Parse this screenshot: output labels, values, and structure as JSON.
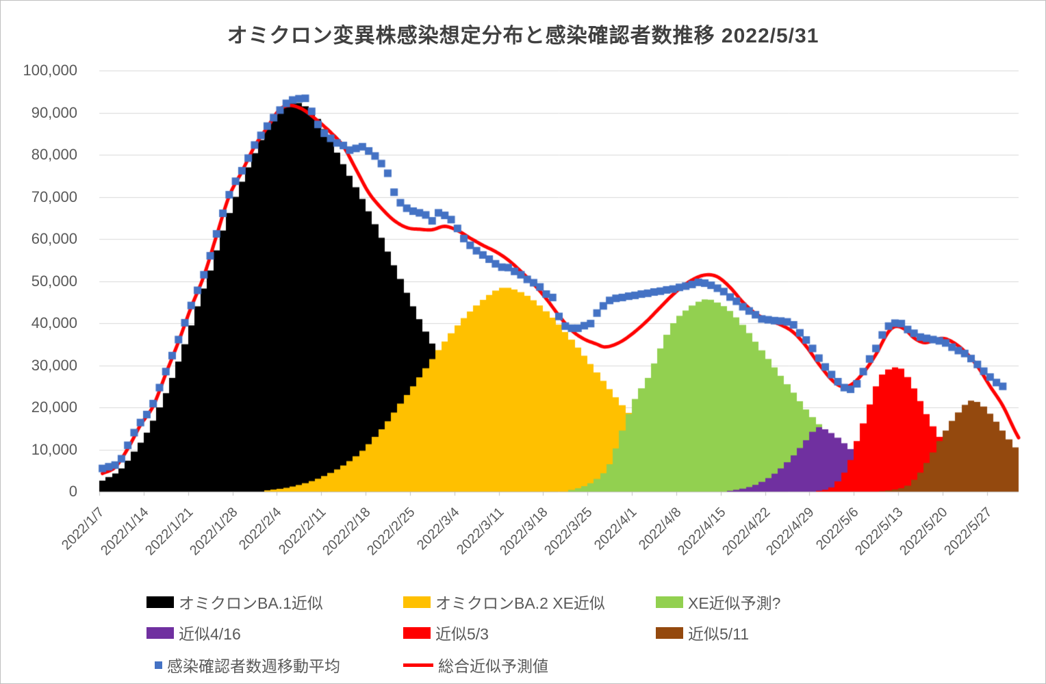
{
  "chart_data": {
    "type": "combo",
    "title": "オミクロン変異株感染想定分布と感染確認者数推移  2022/5/31",
    "start_date": "2022/1/7",
    "end_date": "2022/5/31",
    "x_unit": "day (daily bars from 2022/1/7)",
    "grid": "horizontal",
    "legend_position": "bottom",
    "y_axis": {
      "min": 0,
      "max": 100000,
      "step": 10000,
      "tick_labels": [
        "100,000",
        "90,000",
        "80,000",
        "70,000",
        "60,000",
        "50,000",
        "40,000",
        "30,000",
        "20,000",
        "10,000",
        "0"
      ]
    },
    "x_axis": {
      "tick_labels": [
        "2022/1/7",
        "2022/1/14",
        "2022/1/21",
        "2022/1/28",
        "2022/2/4",
        "2022/2/11",
        "2022/2/18",
        "2022/2/25",
        "2022/3/4",
        "2022/3/11",
        "2022/3/18",
        "2022/3/25",
        "2022/4/1",
        "2022/4/8",
        "2022/4/15",
        "2022/4/22",
        "2022/4/29",
        "2022/5/6",
        "2022/5/13",
        "2022/5/20",
        "2022/5/27"
      ]
    },
    "bar_series": [
      {
        "name": "オミクロンBA.1近似",
        "color": "#000000",
        "points": [
          [
            0,
            2600
          ],
          [
            3,
            5500
          ],
          [
            5,
            9500
          ],
          [
            7,
            14000
          ],
          [
            9,
            20000
          ],
          [
            11,
            27000
          ],
          [
            13,
            35000
          ],
          [
            15,
            44000
          ],
          [
            17,
            52500
          ],
          [
            19,
            62000
          ],
          [
            21,
            70000
          ],
          [
            23,
            77000
          ],
          [
            25,
            83500
          ],
          [
            27,
            88500
          ],
          [
            29,
            91500
          ],
          [
            30.5,
            92400
          ],
          [
            32,
            91500
          ],
          [
            34,
            88500
          ],
          [
            37,
            80500
          ],
          [
            39,
            75000
          ],
          [
            41,
            69500
          ],
          [
            43,
            63500
          ],
          [
            45,
            57000
          ],
          [
            47,
            50500
          ],
          [
            49,
            44000
          ],
          [
            51,
            38000
          ],
          [
            53,
            32400
          ],
          [
            55,
            27000
          ],
          [
            57,
            22200
          ],
          [
            59,
            18000
          ],
          [
            61,
            14400
          ],
          [
            63,
            11300
          ],
          [
            65,
            8800
          ],
          [
            67,
            6700
          ],
          [
            69,
            5000
          ],
          [
            71,
            3800
          ],
          [
            74,
            2300
          ],
          [
            77,
            1300
          ],
          [
            80,
            700
          ],
          [
            84,
            300
          ],
          [
            88,
            100
          ],
          [
            92,
            0
          ]
        ]
      },
      {
        "name": "オミクロンBA.2 XE近似",
        "color": "#FFC000",
        "points": [
          [
            26,
            300
          ],
          [
            29,
            900
          ],
          [
            32,
            2000
          ],
          [
            35,
            3700
          ],
          [
            38,
            6200
          ],
          [
            41,
            9700
          ],
          [
            43,
            13000
          ],
          [
            45,
            16700
          ],
          [
            47,
            20900
          ],
          [
            49,
            25000
          ],
          [
            51,
            29300
          ],
          [
            53,
            33600
          ],
          [
            55,
            37600
          ],
          [
            57,
            41200
          ],
          [
            59,
            44200
          ],
          [
            61,
            46700
          ],
          [
            63,
            48400
          ],
          [
            65,
            48000
          ],
          [
            67,
            46500
          ],
          [
            69,
            44200
          ],
          [
            71,
            41300
          ],
          [
            73,
            37900
          ],
          [
            75,
            34200
          ],
          [
            77,
            30300
          ],
          [
            79,
            26300
          ],
          [
            81,
            22400
          ],
          [
            83,
            18700
          ],
          [
            85,
            15300
          ],
          [
            87,
            12300
          ],
          [
            89,
            9700
          ],
          [
            91,
            7500
          ],
          [
            93,
            5700
          ],
          [
            95,
            4200
          ],
          [
            97,
            3000
          ],
          [
            99,
            2100
          ],
          [
            102,
            1200
          ],
          [
            105,
            600
          ],
          [
            108,
            250
          ],
          [
            111,
            0
          ]
        ]
      },
      {
        "name": "XE近似予測?",
        "color": "#92D050",
        "points": [
          [
            74,
            400
          ],
          [
            76,
            1300
          ],
          [
            78,
            3000
          ],
          [
            80,
            6500
          ],
          [
            82,
            14500
          ],
          [
            84,
            22000
          ],
          [
            86,
            27000
          ],
          [
            88,
            34000
          ],
          [
            90,
            40000
          ],
          [
            92,
            43000
          ],
          [
            94,
            45100
          ],
          [
            95.5,
            45700
          ],
          [
            97,
            44900
          ],
          [
            99,
            42900
          ],
          [
            101,
            39600
          ],
          [
            103,
            35600
          ],
          [
            105,
            31500
          ],
          [
            107,
            27500
          ],
          [
            109,
            23500
          ],
          [
            111,
            19500
          ],
          [
            113,
            16000
          ],
          [
            115,
            13000
          ],
          [
            117,
            10400
          ],
          [
            119,
            8300
          ],
          [
            121,
            6600
          ],
          [
            123,
            5200
          ],
          [
            125,
            4000
          ],
          [
            127,
            3000
          ],
          [
            129,
            2200
          ],
          [
            131,
            1600
          ],
          [
            134,
            900
          ],
          [
            137,
            400
          ],
          [
            140,
            100
          ],
          [
            142,
            0
          ]
        ]
      },
      {
        "name": "近似4/16",
        "color": "#7030A0",
        "points": [
          [
            99,
            200
          ],
          [
            101,
            700
          ],
          [
            103,
            1600
          ],
          [
            105,
            3200
          ],
          [
            107,
            5500
          ],
          [
            109,
            8600
          ],
          [
            111,
            12200
          ],
          [
            112,
            14200
          ],
          [
            113,
            15300
          ],
          [
            114,
            14800
          ],
          [
            116,
            12800
          ],
          [
            118,
            10100
          ],
          [
            120,
            7500
          ],
          [
            122,
            5300
          ],
          [
            124,
            3600
          ],
          [
            126,
            2300
          ],
          [
            128,
            1400
          ],
          [
            130,
            800
          ],
          [
            132,
            400
          ],
          [
            134,
            150
          ],
          [
            136,
            0
          ]
        ]
      },
      {
        "name": "近似5/3",
        "color": "#FF0000",
        "points": [
          [
            113,
            200
          ],
          [
            115,
            1000
          ],
          [
            117,
            4500
          ],
          [
            118,
            7500
          ],
          [
            119,
            12000
          ],
          [
            120,
            16200
          ],
          [
            121,
            20700
          ],
          [
            122,
            25000
          ],
          [
            123,
            27800
          ],
          [
            124,
            29000
          ],
          [
            125,
            29500
          ],
          [
            126,
            29200
          ],
          [
            127,
            27200
          ],
          [
            128,
            24500
          ],
          [
            129,
            21500
          ],
          [
            130,
            18400
          ],
          [
            131,
            15500
          ],
          [
            132,
            13000
          ],
          [
            133,
            10800
          ],
          [
            134,
            9000
          ],
          [
            135,
            7400
          ],
          [
            136,
            6000
          ],
          [
            137,
            4900
          ],
          [
            138,
            4000
          ],
          [
            139,
            3200
          ],
          [
            140,
            2600
          ],
          [
            141,
            2100
          ],
          [
            142,
            1700
          ],
          [
            143,
            1400
          ],
          [
            144,
            1100
          ]
        ]
      },
      {
        "name": "近似5/11",
        "color": "#94490E",
        "points": [
          [
            123,
            100
          ],
          [
            125,
            500
          ],
          [
            127,
            1400
          ],
          [
            128,
            2800
          ],
          [
            129,
            4500
          ],
          [
            130,
            6800
          ],
          [
            131,
            9300
          ],
          [
            132,
            12000
          ],
          [
            133,
            14500
          ],
          [
            134,
            16800
          ],
          [
            135,
            18800
          ],
          [
            136,
            20600
          ],
          [
            137,
            21600
          ],
          [
            138,
            21300
          ],
          [
            139,
            20200
          ],
          [
            140,
            18500
          ],
          [
            141,
            16600
          ],
          [
            142,
            14500
          ],
          [
            143,
            12400
          ],
          [
            144,
            10500
          ]
        ]
      }
    ],
    "scatter_series": {
      "name": "感染確認者数週移動平均",
      "color": "#4472C4",
      "marker": "square",
      "daily_values": [
        5500,
        5900,
        6300,
        7800,
        11000,
        14000,
        16400,
        18300,
        20900,
        24700,
        28500,
        32300,
        36100,
        40100,
        44200,
        47800,
        51500,
        56000,
        61200,
        66100,
        70500,
        73700,
        76200,
        79200,
        82300,
        84600,
        86800,
        88800,
        90600,
        92200,
        93000,
        93300,
        93400,
        90300,
        87200,
        85100,
        83900,
        82800,
        82200,
        81100,
        81500,
        81900,
        80900,
        79700,
        77900,
        75600,
        71100,
        68600,
        67300,
        66600,
        66200,
        65700,
        64300,
        66200,
        65600,
        64600,
        62500,
        60100,
        58500,
        57200,
        56200,
        55200,
        54100,
        53300,
        53200,
        52300,
        51500,
        50400,
        49600,
        48600,
        46900,
        46100,
        41600,
        39300,
        38800,
        38800,
        39400,
        39900,
        42400,
        44100,
        45400,
        45900,
        46100,
        46400,
        46600,
        46900,
        47100,
        47400,
        47600,
        47900,
        48100,
        48500,
        48800,
        49200,
        49700,
        49500,
        49000,
        48300,
        47500,
        46200,
        45200,
        43900,
        42900,
        42000,
        41000,
        40800,
        40600,
        40500,
        40300,
        39600,
        37700,
        36000,
        34000,
        31700,
        29600,
        27800,
        26100,
        24700,
        24300,
        25600,
        28500,
        31500,
        34000,
        37200,
        39300,
        40000,
        39900,
        38500,
        37600,
        36700,
        36400,
        36100,
        35800,
        35300,
        34300,
        33500,
        32800,
        31600,
        30200,
        28600,
        27200,
        25900,
        25000
      ]
    },
    "line_series": {
      "name": "総合近似予測値",
      "color": "#FF0000",
      "points": [
        [
          0,
          4300
        ],
        [
          2,
          5800
        ],
        [
          4,
          10200
        ],
        [
          6,
          15800
        ],
        [
          8,
          20300
        ],
        [
          10,
          28000
        ],
        [
          12,
          35600
        ],
        [
          14,
          43800
        ],
        [
          16,
          51200
        ],
        [
          18,
          60800
        ],
        [
          20,
          70200
        ],
        [
          22,
          76000
        ],
        [
          24,
          82000
        ],
        [
          26,
          86500
        ],
        [
          28,
          90800
        ],
        [
          29.5,
          91700
        ],
        [
          31,
          91200
        ],
        [
          32,
          90400
        ],
        [
          34,
          88000
        ],
        [
          36,
          85300
        ],
        [
          38,
          82000
        ],
        [
          40,
          76500
        ],
        [
          42,
          71000
        ],
        [
          44,
          67300
        ],
        [
          46,
          64400
        ],
        [
          48,
          62700
        ],
        [
          50,
          62300
        ],
        [
          52,
          62200
        ],
        [
          54,
          63000
        ],
        [
          56,
          62000
        ],
        [
          58,
          60200
        ],
        [
          60,
          58500
        ],
        [
          62,
          57000
        ],
        [
          64,
          55000
        ],
        [
          66,
          52300
        ],
        [
          68,
          49300
        ],
        [
          70,
          45800
        ],
        [
          72,
          41800
        ],
        [
          74,
          38300
        ],
        [
          76,
          36200
        ],
        [
          78,
          35000
        ],
        [
          79,
          34400
        ],
        [
          80,
          34500
        ],
        [
          82,
          35800
        ],
        [
          84,
          38000
        ],
        [
          86,
          40700
        ],
        [
          88,
          43800
        ],
        [
          90,
          46800
        ],
        [
          92,
          49300
        ],
        [
          94,
          51000
        ],
        [
          95.5,
          51500
        ],
        [
          97,
          51000
        ],
        [
          99,
          48500
        ],
        [
          101,
          45000
        ],
        [
          103,
          42300
        ],
        [
          105,
          40700
        ],
        [
          107,
          39600
        ],
        [
          109,
          37800
        ],
        [
          111,
          34500
        ],
        [
          113,
          30300
        ],
        [
          115,
          26600
        ],
        [
          116.5,
          25000
        ],
        [
          118,
          25300
        ],
        [
          120,
          28200
        ],
        [
          122,
          32600
        ],
        [
          124,
          38000
        ],
        [
          125,
          39200
        ],
        [
          126.5,
          38600
        ],
        [
          128,
          36500
        ],
        [
          129.5,
          35400
        ],
        [
          131,
          35800
        ],
        [
          132.5,
          36400
        ],
        [
          134,
          35600
        ],
        [
          136,
          33300
        ],
        [
          138,
          29800
        ],
        [
          140,
          25000
        ],
        [
          142,
          20400
        ],
        [
          144,
          14200
        ],
        [
          144.5,
          12800
        ]
      ]
    }
  }
}
